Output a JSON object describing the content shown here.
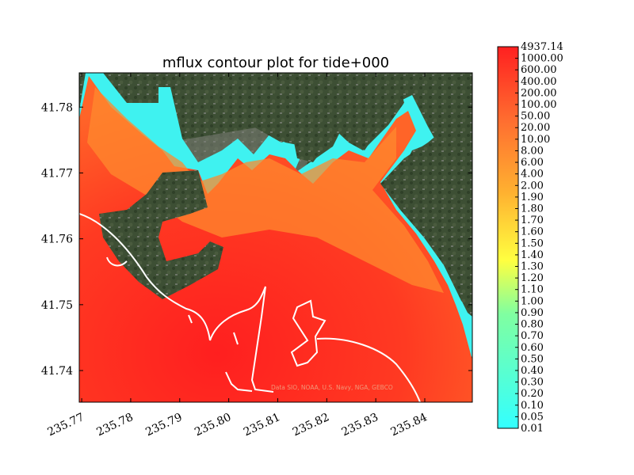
{
  "chart_data": {
    "type": "heatmap",
    "title": "mflux contour plot for tide+000",
    "xlabel": "",
    "ylabel": "",
    "xlim": [
      235.7695,
      235.8497
    ],
    "ylim": [
      41.7352,
      41.7852
    ],
    "x_ticks": [
      "235.77",
      "235.78",
      "235.79",
      "235.80",
      "235.81",
      "235.82",
      "235.83",
      "235.84"
    ],
    "x_tick_values": [
      235.77,
      235.78,
      235.79,
      235.8,
      235.81,
      235.82,
      235.83,
      235.84
    ],
    "y_ticks": [
      "41.74",
      "41.75",
      "41.76",
      "41.77",
      "41.78"
    ],
    "y_tick_values": [
      41.74,
      41.75,
      41.76,
      41.77,
      41.78
    ],
    "colorbar": {
      "levels": [
        "0.01",
        "0.05",
        "0.10",
        "0.20",
        "0.30",
        "0.40",
        "0.50",
        "0.60",
        "0.70",
        "0.80",
        "0.90",
        "1.00",
        "1.10",
        "1.20",
        "1.30",
        "1.40",
        "1.50",
        "1.60",
        "1.70",
        "1.80",
        "1.90",
        "2.00",
        "4.00",
        "6.00",
        "8.00",
        "10.00",
        "20.00",
        "50.00",
        "100.00",
        "200.00",
        "400.00",
        "600.00",
        "1000.00",
        "4937.14"
      ],
      "colormap": "cyan-yellow-red (jet upper half)"
    },
    "background": "satellite imagery",
    "attribution": "Data SIO, NOAA, U.S. Navy, NGA, GEBCO",
    "grid": false
  },
  "colors": {
    "low": "#33ffff",
    "mid": "#ffff40",
    "high": "#ff2020",
    "land": "#3f5236",
    "coastline": "#ffffff"
  }
}
